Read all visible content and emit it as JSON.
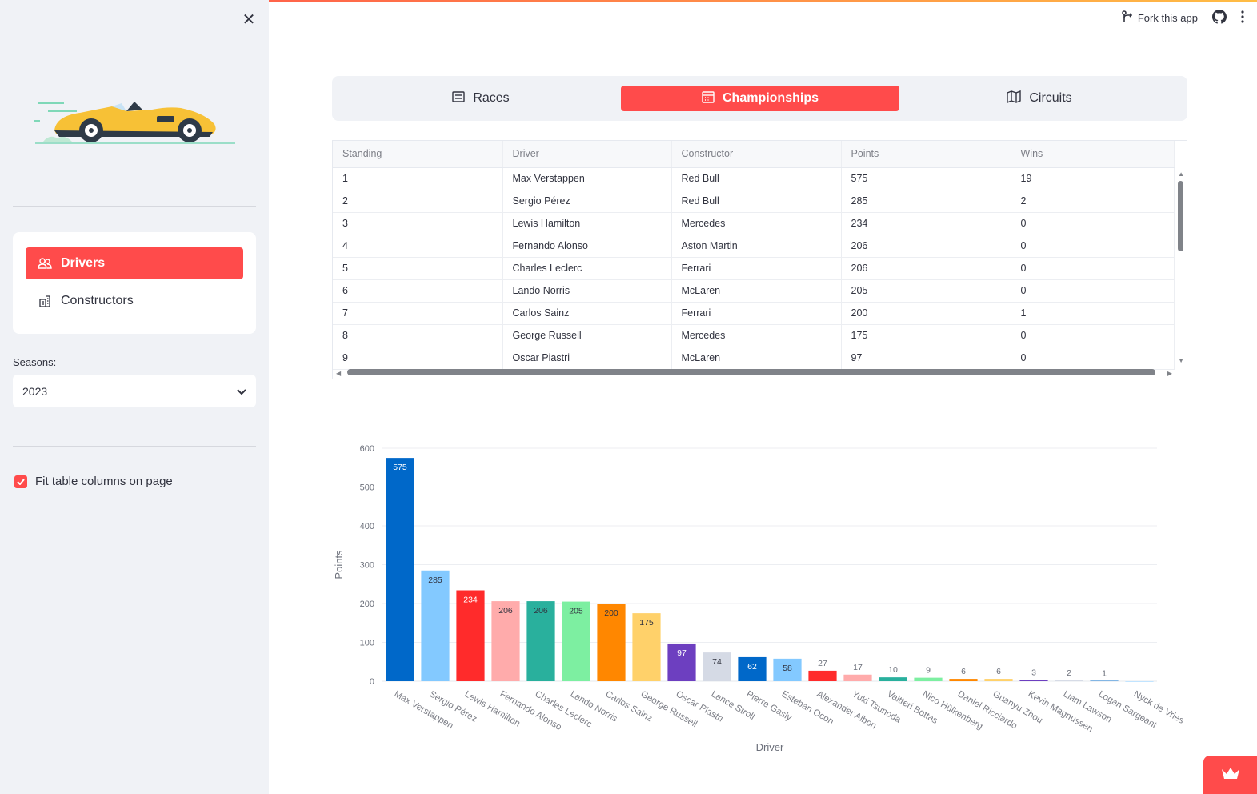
{
  "header": {
    "fork_label": "Fork this app"
  },
  "sidebar": {
    "nav": [
      {
        "label": "Drivers",
        "icon": "people-icon",
        "active": true
      },
      {
        "label": "Constructors",
        "icon": "building-icon",
        "active": false
      }
    ],
    "seasons_label": "Seasons:",
    "season_value": "2023",
    "fit_columns_label": "Fit table columns on page",
    "fit_columns_checked": true
  },
  "tabs": [
    {
      "label": "Races",
      "icon": "list-icon",
      "active": false
    },
    {
      "label": "Championships",
      "icon": "calendar-icon",
      "active": true
    },
    {
      "label": "Circuits",
      "icon": "map-icon",
      "active": false
    }
  ],
  "table": {
    "columns": [
      "Standing",
      "Driver",
      "Constructor",
      "Points",
      "Wins"
    ],
    "rows": [
      [
        "1",
        "Max Verstappen",
        "Red Bull",
        "575",
        "19"
      ],
      [
        "2",
        "Sergio Pérez",
        "Red Bull",
        "285",
        "2"
      ],
      [
        "3",
        "Lewis Hamilton",
        "Mercedes",
        "234",
        "0"
      ],
      [
        "4",
        "Fernando Alonso",
        "Aston Martin",
        "206",
        "0"
      ],
      [
        "5",
        "Charles Leclerc",
        "Ferrari",
        "206",
        "0"
      ],
      [
        "6",
        "Lando Norris",
        "McLaren",
        "205",
        "0"
      ],
      [
        "7",
        "Carlos Sainz",
        "Ferrari",
        "200",
        "1"
      ],
      [
        "8",
        "George Russell",
        "Mercedes",
        "175",
        "0"
      ],
      [
        "9",
        "Oscar Piastri",
        "McLaren",
        "97",
        "0"
      ]
    ]
  },
  "chart_data": {
    "type": "bar",
    "xlabel": "Driver",
    "ylabel": "Points",
    "ylim": [
      0,
      600
    ],
    "yticks": [
      0,
      100,
      200,
      300,
      400,
      500,
      600
    ],
    "grid": true,
    "categories": [
      "Max Verstappen",
      "Sergio Pérez",
      "Lewis Hamilton",
      "Fernando Alonso",
      "Charles Leclerc",
      "Lando Norris",
      "Carlos Sainz",
      "George Russell",
      "Oscar Piastri",
      "Lance Stroll",
      "Pierre Gasly",
      "Esteban Ocon",
      "Alexander Albon",
      "Yuki Tsunoda",
      "Valtteri Bottas",
      "Nico Hülkenberg",
      "Daniel Ricciardo",
      "Guanyu Zhou",
      "Kevin Magnussen",
      "Liam Lawson",
      "Logan Sargeant",
      "Nyck de Vries"
    ],
    "values": [
      575,
      285,
      234,
      206,
      206,
      205,
      200,
      175,
      97,
      74,
      62,
      58,
      27,
      17,
      10,
      9,
      6,
      6,
      3,
      2,
      1,
      0
    ],
    "colors": [
      "#0068c9",
      "#83c9ff",
      "#ff2b2b",
      "#ffabab",
      "#29b09d",
      "#7defa1",
      "#ff8700",
      "#ffd16a",
      "#6d3fc0",
      "#d5dae5",
      "#0068c9",
      "#83c9ff",
      "#ff2b2b",
      "#ffabab",
      "#29b09d",
      "#7defa1",
      "#ff8700",
      "#ffd16a",
      "#6d3fc0",
      "#d5dae5",
      "#0068c9",
      "#83c9ff"
    ]
  }
}
